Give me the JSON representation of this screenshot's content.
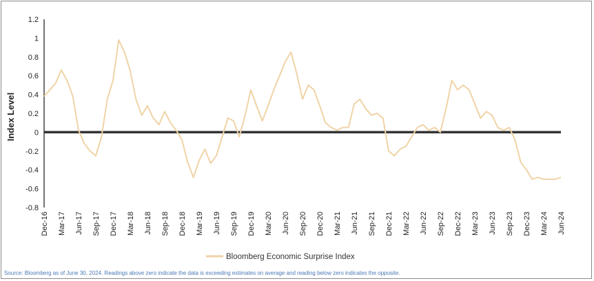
{
  "chart_data": {
    "type": "line",
    "title": "",
    "xlabel": "",
    "ylabel": "Index Level",
    "ylim": [
      -0.8,
      1.2
    ],
    "yticks": [
      1.2,
      1,
      0.8,
      0.6,
      0.4,
      0.2,
      0,
      -0.2,
      -0.4,
      -0.6,
      -0.8
    ],
    "ytick_labels": [
      "1.2",
      "1",
      "0.8",
      "0.6",
      "0.4",
      "0.2",
      "0",
      "-0.2",
      "-0.4",
      "-0.6",
      "-0.8"
    ],
    "x_range_months": [
      0,
      90
    ],
    "xtick_labels": [
      "Dec-16",
      "Mar-17",
      "Jun-17",
      "Sep-17",
      "Dec-17",
      "Mar-18",
      "Jun-18",
      "Sep-18",
      "Dec-18",
      "Mar-19",
      "Jun-19",
      "Sep-19",
      "Dec-19",
      "Mar-20",
      "Jun-20",
      "Sep-20",
      "Dec-20",
      "Mar-21",
      "Jun-21",
      "Sep-21",
      "Dec-21",
      "Mar-22",
      "Jun-22",
      "Sep-22",
      "Dec-22",
      "Mar-23",
      "Jun-23",
      "Sep-23",
      "Dec-23",
      "Mar-24",
      "Jun-24"
    ],
    "series": [
      {
        "name": "Bloomberg Economic Surprise Index",
        "color": "#f0d3a6",
        "x": [
          0,
          1,
          2,
          3,
          4,
          5,
          6,
          7,
          8,
          9,
          10,
          11,
          12,
          13,
          14,
          15,
          16,
          17,
          18,
          19,
          20,
          21,
          22,
          23,
          24,
          25,
          26,
          27,
          28,
          29,
          30,
          31,
          32,
          33,
          34,
          35,
          36,
          37,
          38,
          39,
          40,
          41,
          42,
          43,
          44,
          45,
          46,
          47,
          48,
          49,
          50,
          51,
          52,
          53,
          54,
          55,
          56,
          57,
          58,
          59,
          60,
          61,
          62,
          63,
          64,
          65,
          66,
          67,
          68,
          69,
          70,
          71,
          72,
          73,
          74,
          75,
          76,
          77,
          78,
          79,
          80,
          81,
          82,
          83,
          84,
          85,
          86,
          87,
          88,
          89,
          90
        ],
        "values": [
          0.38,
          0.45,
          0.52,
          0.66,
          0.55,
          0.38,
          0.02,
          -0.12,
          -0.2,
          -0.25,
          -0.05,
          0.35,
          0.55,
          0.98,
          0.85,
          0.65,
          0.35,
          0.18,
          0.28,
          0.15,
          0.08,
          0.22,
          0.1,
          0.02,
          -0.08,
          -0.32,
          -0.48,
          -0.3,
          -0.18,
          -0.33,
          -0.25,
          -0.05,
          0.15,
          0.12,
          -0.05,
          0.18,
          0.45,
          0.28,
          0.12,
          0.28,
          0.45,
          0.6,
          0.75,
          0.85,
          0.62,
          0.35,
          0.5,
          0.45,
          0.28,
          0.1,
          0.05,
          0.02,
          0.05,
          0.05,
          0.3,
          0.35,
          0.25,
          0.18,
          0.2,
          0.15,
          -0.2,
          -0.25,
          -0.18,
          -0.15,
          -0.05,
          0.05,
          0.08,
          0.02,
          0.05,
          0.0,
          0.25,
          0.55,
          0.45,
          0.5,
          0.45,
          0.3,
          0.15,
          0.22,
          0.18,
          0.05,
          0.02,
          0.05,
          -0.08,
          -0.32,
          -0.4,
          -0.5,
          -0.48,
          -0.5,
          -0.5,
          -0.5,
          -0.48
        ]
      }
    ],
    "legend": {
      "label": "Bloomberg Economic Surprise Index",
      "position": "bottom-center"
    }
  },
  "footer": {
    "source": "Source: Bloomberg as of June 30, 2024. Readings above zero indicate the data is exceeding estimates on average and reading below zero indicates the opposite."
  }
}
